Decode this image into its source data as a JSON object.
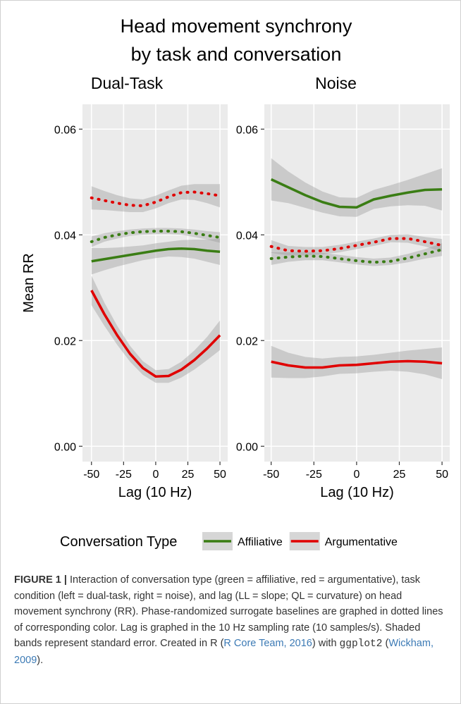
{
  "title": [
    "Head movement synchrony",
    "by task and conversation"
  ],
  "chart_data": [
    {
      "type": "line",
      "title": "Dual-Task",
      "y_label": "Mean RR",
      "x_label": "Lag (10 Hz)",
      "legend_title": "Conversation Type",
      "x": [
        -50,
        -40,
        -30,
        -20,
        -10,
        0,
        10,
        20,
        30,
        40,
        50
      ],
      "xlim": [
        -57,
        56
      ],
      "ylim": [
        -0.0029,
        0.0647
      ],
      "xticks": [
        -50,
        -25,
        0,
        25,
        50
      ],
      "yticks": [
        {
          "value": 0,
          "label": "0.00"
        },
        0.02,
        0.04,
        0.06
      ],
      "grid": true,
      "series": [
        {
          "name": "Affiliative",
          "color": "#3a7d14",
          "linestyle": "solid",
          "values": [
            0.035,
            0.0354,
            0.0358,
            0.0362,
            0.0366,
            0.037,
            0.0373,
            0.0374,
            0.0373,
            0.037,
            0.0368
          ],
          "se": [
            0.0025,
            0.0021,
            0.0018,
            0.0016,
            0.0014,
            0.0014,
            0.0014,
            0.0016,
            0.0018,
            0.0021,
            0.0025
          ]
        },
        {
          "name": "Argumentative",
          "color": "#e00000",
          "linestyle": "solid",
          "values": [
            0.0295,
            0.025,
            0.021,
            0.0175,
            0.0148,
            0.0132,
            0.0133,
            0.0145,
            0.0163,
            0.0185,
            0.021
          ],
          "se": [
            0.0028,
            0.0022,
            0.0018,
            0.0015,
            0.0013,
            0.0012,
            0.0013,
            0.0015,
            0.0018,
            0.0022,
            0.0028
          ]
        },
        {
          "color": "#3a7d14",
          "linestyle": "dotted",
          "values": [
            0.0387,
            0.0395,
            0.04,
            0.0404,
            0.0406,
            0.0407,
            0.0407,
            0.0406,
            0.0403,
            0.0399,
            0.0395
          ],
          "se": [
            0.001,
            0.0008,
            0.0007,
            0.0006,
            0.0006,
            0.0006,
            0.0006,
            0.0006,
            0.0007,
            0.0008,
            0.001
          ]
        },
        {
          "color": "#e00000",
          "linestyle": "dotted",
          "values": [
            0.047,
            0.0465,
            0.046,
            0.0456,
            0.0455,
            0.0462,
            0.0472,
            0.048,
            0.0481,
            0.0478,
            0.0474
          ],
          "se": [
            0.0022,
            0.0018,
            0.0015,
            0.0013,
            0.0012,
            0.0012,
            0.0012,
            0.0013,
            0.0015,
            0.0018,
            0.0022
          ]
        }
      ]
    },
    {
      "type": "line",
      "title": "Noise",
      "x_label": "Lag (10 Hz)",
      "x": [
        -50,
        -40,
        -30,
        -20,
        -10,
        0,
        10,
        20,
        30,
        40,
        50
      ],
      "xlim": [
        -54,
        54.5
      ],
      "ylim": [
        -0.0029,
        0.0647
      ],
      "xticks": [
        -50,
        -25,
        0,
        25,
        50
      ],
      "yticks": [
        {
          "value": 0,
          "label": "0.00"
        },
        0.02,
        0.04,
        0.06
      ],
      "grid": true,
      "series": [
        {
          "color": "#3a7d14",
          "linestyle": "solid",
          "values": [
            0.0505,
            0.049,
            0.0475,
            0.0462,
            0.0453,
            0.0452,
            0.0467,
            0.0474,
            0.048,
            0.0485,
            0.0486
          ],
          "se": [
            0.004,
            0.003,
            0.0024,
            0.002,
            0.0018,
            0.0018,
            0.0018,
            0.002,
            0.0024,
            0.003,
            0.004
          ]
        },
        {
          "color": "#e00000",
          "linestyle": "solid",
          "values": [
            0.016,
            0.0153,
            0.0149,
            0.0149,
            0.0153,
            0.0154,
            0.0157,
            0.016,
            0.0161,
            0.016,
            0.0157
          ],
          "se": [
            0.003,
            0.0024,
            0.002,
            0.0017,
            0.0016,
            0.0016,
            0.0016,
            0.0017,
            0.002,
            0.0024,
            0.003
          ]
        },
        {
          "color": "#3a7d14",
          "linestyle": "dotted",
          "values": [
            0.0355,
            0.0358,
            0.036,
            0.0359,
            0.0355,
            0.0351,
            0.0348,
            0.035,
            0.0356,
            0.0364,
            0.0372
          ],
          "se": [
            0.0012,
            0.0009,
            0.0008,
            0.0007,
            0.0007,
            0.0007,
            0.0007,
            0.0007,
            0.0008,
            0.0009,
            0.0012
          ]
        },
        {
          "color": "#e00000",
          "linestyle": "dotted",
          "values": [
            0.0378,
            0.037,
            0.0369,
            0.037,
            0.0374,
            0.038,
            0.0386,
            0.0393,
            0.0393,
            0.0387,
            0.038
          ],
          "se": [
            0.0012,
            0.0009,
            0.0008,
            0.0007,
            0.0007,
            0.0007,
            0.0007,
            0.0007,
            0.0008,
            0.0009,
            0.0012
          ]
        }
      ]
    }
  ],
  "caption": {
    "runs": [
      {
        "text": "FIGURE 1 |",
        "style": "bold"
      },
      {
        "text": " Interaction of conversation type (green = affiliative, red = argumentative), task condition (left = dual-task, right = noise), and lag (LL = slope; QL = curvature) on head movement synchrony (RR). Phase-randomized surrogate baselines are graphed in dotted lines of corresponding color. Lag is graphed in the 10 Hz sampling rate (10 samples/s). Shaded bands represent standard error. Created in R (",
        "style": "plain"
      },
      {
        "text": "R Core Team, 2016",
        "style": "link"
      },
      {
        "text": ") with ",
        "style": "plain"
      },
      {
        "text": "ggplot2",
        "style": "code"
      },
      {
        "text": " (",
        "style": "plain"
      },
      {
        "text": "Wickham, 2009",
        "style": "link"
      },
      {
        "text": ").",
        "style": "plain"
      }
    ]
  }
}
